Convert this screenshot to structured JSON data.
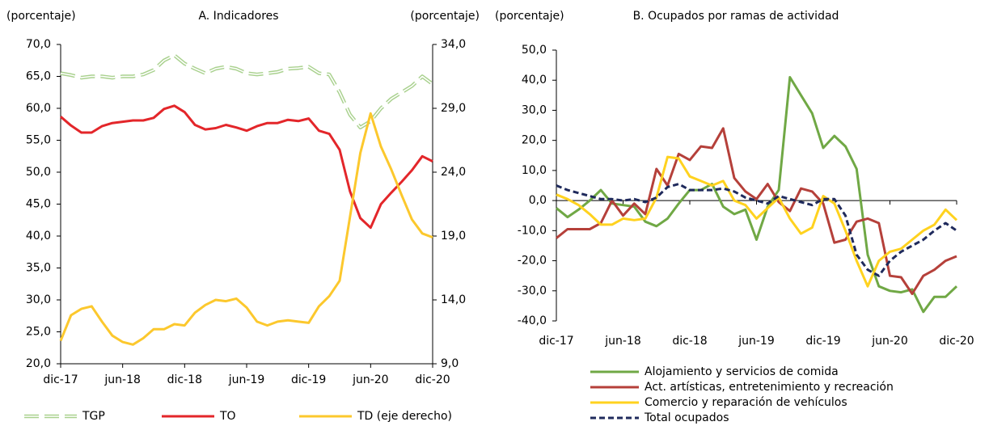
{
  "chart_data": [
    {
      "type": "line",
      "title": "A. Indicadores",
      "y_label": "(porcentaje)",
      "y2_label": "(porcentaje)",
      "categories": [
        "dic-17",
        null,
        null,
        null,
        null,
        null,
        "jun-18",
        null,
        null,
        null,
        null,
        null,
        "dic-18",
        null,
        null,
        null,
        null,
        null,
        "jun-19",
        null,
        null,
        null,
        null,
        null,
        "dic-19",
        null,
        null,
        null,
        null,
        null,
        "jun-20",
        null,
        null,
        null,
        null,
        null,
        "dic-20"
      ],
      "ylim": [
        20,
        70
      ],
      "yticks": [
        {
          "value": 20,
          "label": "20,0"
        },
        {
          "value": 25,
          "label": "25,0"
        },
        {
          "value": 30,
          "label": "30,0"
        },
        {
          "value": 35,
          "label": "35,0"
        },
        {
          "value": 40,
          "label": "40,0"
        },
        {
          "value": 45,
          "label": "45,0"
        },
        {
          "value": 50,
          "label": "50,0"
        },
        {
          "value": 55,
          "label": "55,0"
        },
        {
          "value": 60,
          "label": "60,0"
        },
        {
          "value": 65,
          "label": "65,0"
        },
        {
          "value": 70,
          "label": "70,0"
        }
      ],
      "y2lim": [
        9,
        34
      ],
      "y2ticks": [
        {
          "value": 9,
          "label": "9,0"
        },
        {
          "value": 14,
          "label": "14,0"
        },
        {
          "value": 19,
          "label": "19,0"
        },
        {
          "value": 24,
          "label": "24,0"
        },
        {
          "value": 29,
          "label": "29,0"
        },
        {
          "value": 34,
          "label": "34,0"
        }
      ],
      "legend": "bottom",
      "series": [
        {
          "name": "TGP",
          "color": "#a9d18e",
          "line_style": "hollow-dashed",
          "values": [
            65.5,
            65.2,
            64.8,
            65.0,
            65.0,
            64.8,
            65.0,
            65.0,
            65.3,
            66.0,
            67.5,
            68.3,
            67.0,
            66.2,
            65.5,
            66.2,
            66.5,
            66.2,
            65.5,
            65.3,
            65.5,
            65.7,
            66.2,
            66.3,
            66.5,
            65.5,
            65.3,
            62.5,
            59.0,
            57.0,
            58.0,
            60.0,
            61.5,
            62.5,
            63.5,
            65.0,
            63.8
          ]
        },
        {
          "name": "TO",
          "color": "#e3262a",
          "line_style": "solid",
          "values": [
            58.7,
            57.3,
            56.2,
            56.2,
            57.2,
            57.7,
            57.9,
            58.1,
            58.1,
            58.5,
            59.9,
            60.4,
            59.4,
            57.4,
            56.7,
            56.9,
            57.4,
            57.0,
            56.5,
            57.2,
            57.7,
            57.7,
            58.2,
            58.0,
            58.4,
            56.5,
            56.0,
            53.5,
            47.0,
            42.8,
            41.3,
            45.0,
            46.8,
            48.5,
            50.3,
            52.5,
            51.7
          ]
        },
        {
          "name": "TD (eje derecho)",
          "color": "#fcc82d",
          "line_style": "solid",
          "axis": "y2",
          "values": [
            10.8,
            12.8,
            13.3,
            13.5,
            12.3,
            11.2,
            10.7,
            10.5,
            11.0,
            11.7,
            11.7,
            12.1,
            12.0,
            13.0,
            13.6,
            14.0,
            13.9,
            14.1,
            13.4,
            12.3,
            12.0,
            12.3,
            12.4,
            12.3,
            12.2,
            13.5,
            14.3,
            15.5,
            20.5,
            25.5,
            28.6,
            26.0,
            24.2,
            22.2,
            20.3,
            19.2,
            18.9
          ]
        }
      ]
    },
    {
      "type": "line",
      "title": "B. Ocupados  por ramas de actividad",
      "y_label": "(porcentaje)",
      "categories": [
        "dic-17",
        null,
        null,
        null,
        null,
        null,
        "jun-18",
        null,
        null,
        null,
        null,
        null,
        "dic-18",
        null,
        null,
        null,
        null,
        null,
        "jun-19",
        null,
        null,
        null,
        null,
        null,
        "dic-19",
        null,
        null,
        null,
        null,
        null,
        "jun-20",
        null,
        null,
        null,
        null,
        null,
        "dic-20"
      ],
      "ylim": [
        -40,
        50
      ],
      "yticks": [
        {
          "value": -40,
          "label": "-40,0"
        },
        {
          "value": -30,
          "label": "-30,0"
        },
        {
          "value": -20,
          "label": "-20,0"
        },
        {
          "value": -10,
          "label": "-10,0"
        },
        {
          "value": 0,
          "label": "0,0"
        },
        {
          "value": 10,
          "label": "10,0"
        },
        {
          "value": 20,
          "label": "20,0"
        },
        {
          "value": 30,
          "label": "30,0"
        },
        {
          "value": 40,
          "label": "40,0"
        },
        {
          "value": 50,
          "label": "50,0"
        }
      ],
      "x_axis_crossing": 0,
      "legend": "bottom",
      "series": [
        {
          "name": "Alojamiento y servicios de comida",
          "color": "#70a845",
          "line_style": "solid",
          "values": [
            -2.5,
            -5.5,
            -3,
            0,
            3.5,
            -1,
            -1.5,
            -2,
            -7,
            -8.5,
            -6,
            -1,
            3.5,
            3.5,
            5.5,
            -2,
            -4.5,
            -3,
            -13,
            -2,
            3.5,
            41,
            35,
            29,
            17.5,
            21.5,
            18,
            10.5,
            -18,
            -28.5,
            -30,
            -30.5,
            -29.5,
            -37,
            -32,
            -32,
            -28.5
          ]
        },
        {
          "name": "Act. artísticas, entretenimiento y recreación",
          "color": "#b5403a",
          "line_style": "solid",
          "values": [
            -12.5,
            -9.5,
            -9.5,
            -9.5,
            -7.5,
            0,
            -5,
            -1,
            -4.5,
            10.5,
            5,
            15.5,
            13.5,
            18,
            17.5,
            24,
            7.5,
            3,
            0.5,
            5.5,
            -0.5,
            -3.5,
            4,
            3,
            -1,
            -14,
            -13,
            -7,
            -6,
            -7.5,
            -25,
            -25.5,
            -31,
            -25,
            -23,
            -20,
            -18.5
          ]
        },
        {
          "name": "Comercio y reparación de vehículos",
          "color": "#ffd21f",
          "line_style": "solid",
          "values": [
            2,
            0.5,
            -1.5,
            -4.5,
            -8,
            -8,
            -6,
            -6.5,
            -6,
            1,
            14.5,
            14,
            8,
            6.5,
            5,
            6.5,
            0,
            -1.5,
            -6,
            -2.5,
            1,
            -6,
            -11,
            -9,
            1.5,
            -1,
            -10,
            -20,
            -28.5,
            -20,
            -17,
            -16,
            -13,
            -10,
            -8,
            -3,
            -6.5
          ]
        },
        {
          "name": "Total ocupados",
          "color": "#1f2a5c",
          "line_style": "dashed",
          "values": [
            5,
            3.5,
            2.5,
            1.5,
            0.5,
            0.5,
            0,
            0.5,
            -0.5,
            1,
            4.5,
            5.5,
            3.5,
            3.5,
            3.5,
            4,
            3,
            1,
            0,
            -1,
            1.5,
            0.5,
            -0.5,
            -1.5,
            0.5,
            0.5,
            -5,
            -18,
            -23,
            -25,
            -20,
            -17,
            -15,
            -13,
            -10,
            -7.5,
            -10
          ]
        }
      ]
    }
  ]
}
